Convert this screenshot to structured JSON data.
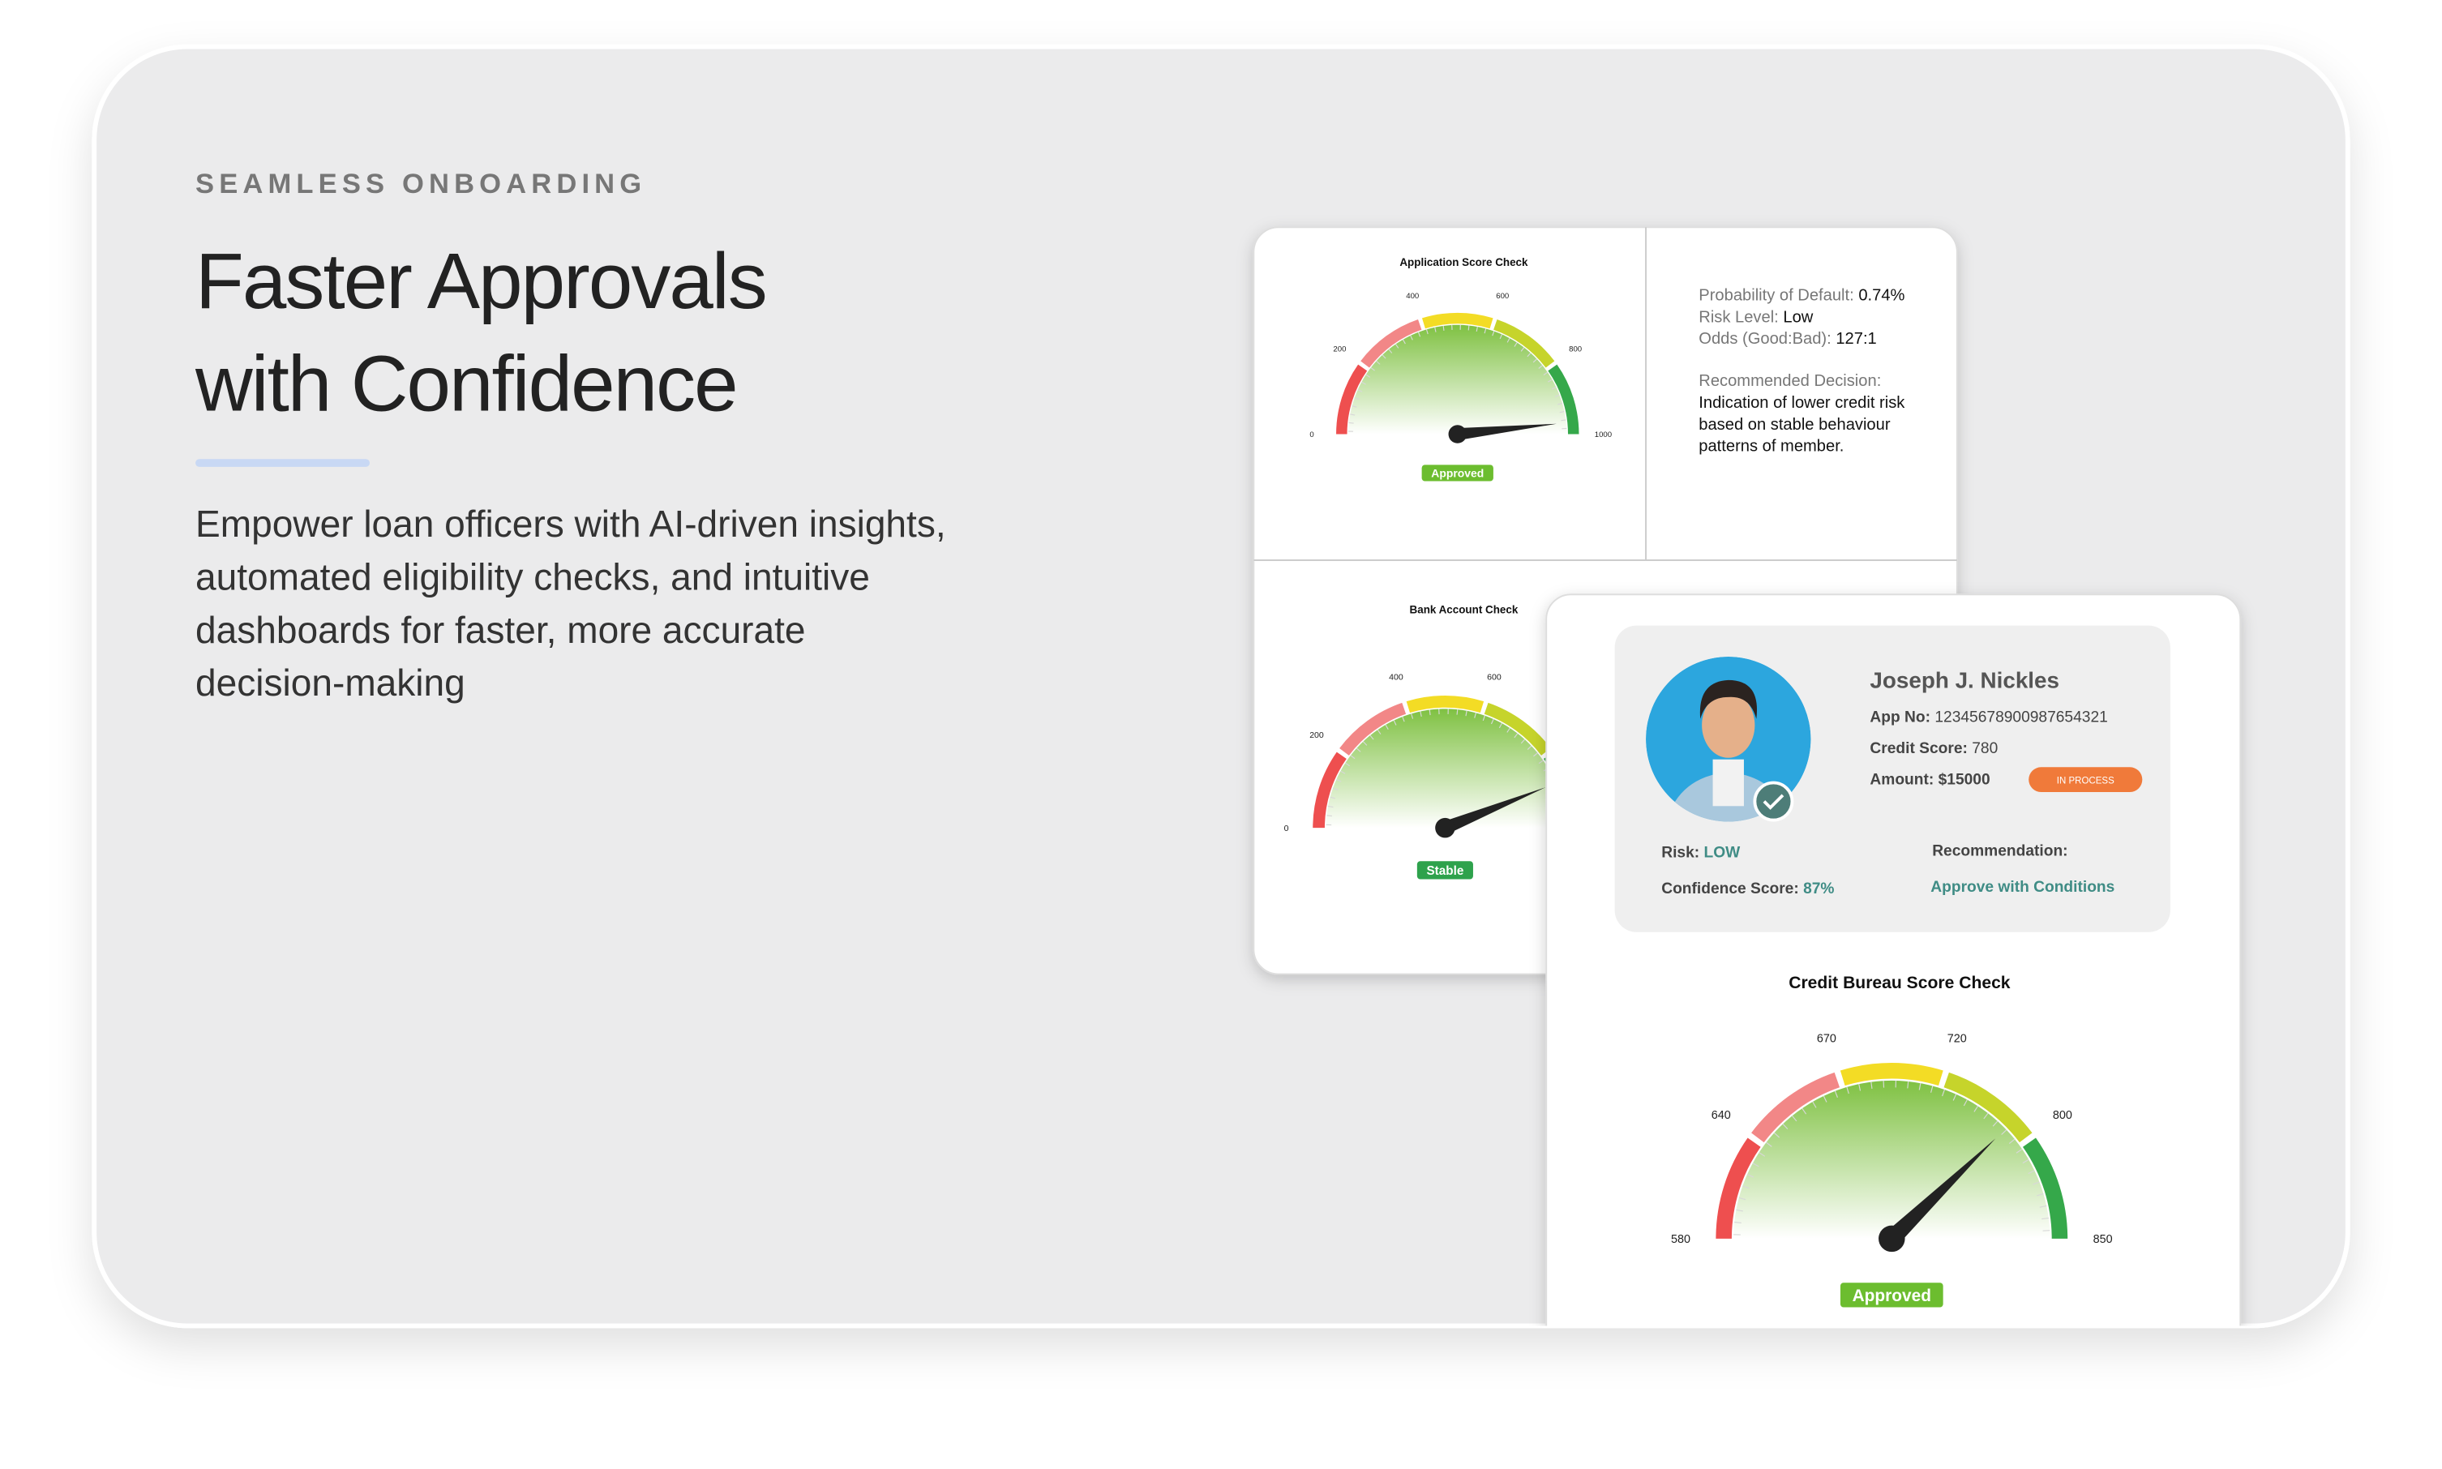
{
  "hero": {
    "eyebrow": "SEAMLESS ONBOARDING",
    "title_lines": [
      "Faster Approvals",
      "with Confidence"
    ],
    "description_lines": [
      "Empower loan officers with AI-driven insights,",
      "automated eligibility checks, and intuitive",
      "dashboards for faster, more accurate",
      "decision-making"
    ]
  },
  "back_card": {
    "application_check": {
      "title": "Application Score Check",
      "ticks": [
        "0",
        "200",
        "400",
        "600",
        "800",
        "1000"
      ],
      "status": "Approved"
    },
    "risk_summary": {
      "lines": [
        {
          "label": "Probability of Default:",
          "value": "0.74%"
        },
        {
          "label": "Risk Level:",
          "value": "Low"
        },
        {
          "label": "Odds (Good:Bad):",
          "value": "127:1"
        }
      ],
      "decision_label": "Recommended Decision:",
      "decision_lines": [
        "Indication of lower credit risk",
        "based on stable behaviour",
        "patterns of member."
      ]
    },
    "bank_check": {
      "title": "Bank Account Check",
      "ticks": [
        "0",
        "200",
        "400",
        "600"
      ],
      "status": "Stable"
    }
  },
  "front_card": {
    "profile": {
      "name": "Joseph J. Nickles",
      "app_no_label": "App No:",
      "app_no": "12345678900987654321",
      "credit_label": "Credit Score:",
      "credit": "780",
      "amount_label": "Amount:",
      "amount": "$15000",
      "badge": "IN PROCESS",
      "risk_label": "Risk:",
      "risk": "LOW",
      "confidence_label": "Confidence Score:",
      "confidence": "87%",
      "recommendation_label": "Recommendation:",
      "recommendation": "Approve with Conditions"
    },
    "credit_check": {
      "title": "Credit Bureau Score Check",
      "ticks": [
        "580",
        "640",
        "670",
        "720",
        "800",
        "850"
      ],
      "status": "Approved"
    }
  }
}
